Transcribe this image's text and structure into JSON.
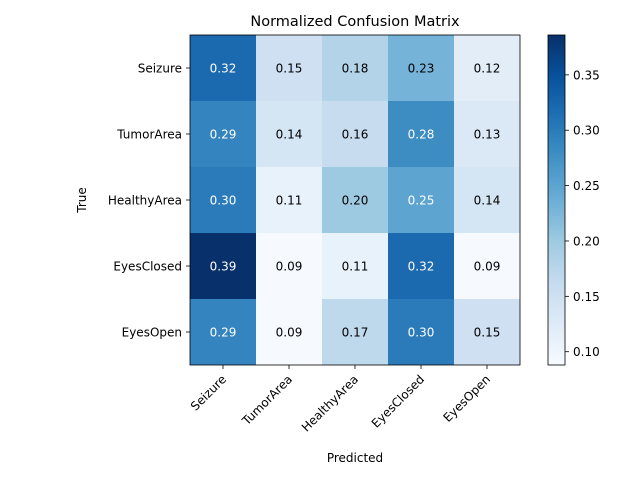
{
  "chart_data": {
    "type": "heatmap",
    "title": "Normalized Confusion Matrix",
    "xlabel": "Predicted",
    "ylabel": "True",
    "x_categories": [
      "Seizure",
      "TumorArea",
      "HealthyArea",
      "EyesClosed",
      "EyesOpen"
    ],
    "y_categories": [
      "Seizure",
      "TumorArea",
      "HealthyArea",
      "EyesClosed",
      "EyesOpen"
    ],
    "values": [
      [
        0.32,
        0.15,
        0.18,
        0.23,
        0.12
      ],
      [
        0.29,
        0.14,
        0.16,
        0.28,
        0.13
      ],
      [
        0.3,
        0.11,
        0.2,
        0.25,
        0.14
      ],
      [
        0.39,
        0.09,
        0.11,
        0.32,
        0.09
      ],
      [
        0.29,
        0.09,
        0.17,
        0.3,
        0.15
      ]
    ],
    "colormap": "Blues",
    "colorbar": {
      "range": [
        0.088,
        0.386
      ],
      "ticks": [
        0.1,
        0.15,
        0.2,
        0.25,
        0.3,
        0.35
      ],
      "tick_labels": [
        "0.10",
        "0.15",
        "0.20",
        "0.25",
        "0.30",
        "0.35"
      ]
    }
  }
}
